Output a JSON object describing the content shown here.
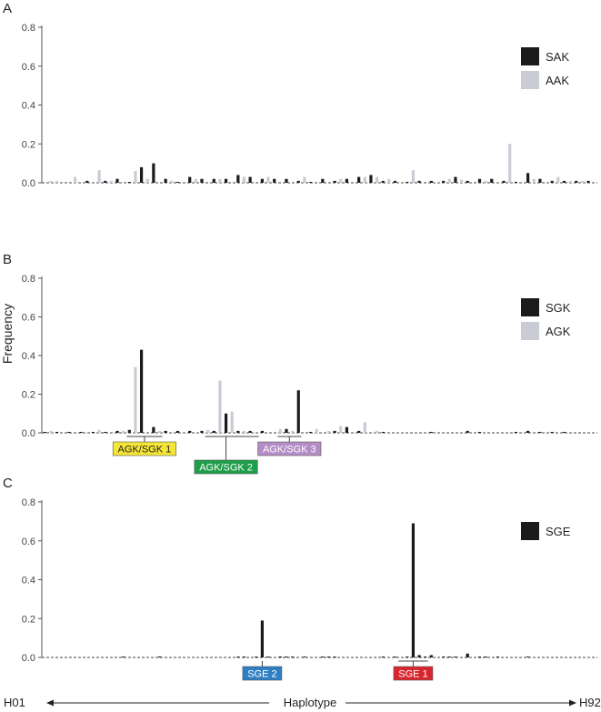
{
  "figure": {
    "ylabel": "Frequency",
    "x_axis": {
      "left": "H01",
      "center": "Haplotype",
      "right": "H92"
    }
  },
  "colors": {
    "dark": "#1b1b1b",
    "light": "#c9ccd4"
  },
  "chart_data": [
    {
      "type": "bar",
      "panel": "A",
      "ylim": [
        0,
        0.8
      ],
      "yticks": [
        0.0,
        0.2,
        0.4,
        0.6,
        0.8
      ],
      "legend_position": "top-right",
      "series": [
        {
          "name": "SAK",
          "color": "#1b1b1b",
          "x": [
            8,
            11,
            13,
            15,
            17,
            19,
            21,
            23,
            25,
            27,
            29,
            31,
            33,
            35,
            37,
            39,
            41,
            43,
            45,
            47,
            49,
            51,
            53,
            55,
            57,
            59,
            61,
            63,
            65,
            67,
            69,
            71,
            73,
            75,
            77,
            79,
            81,
            83,
            85,
            87,
            89,
            91
          ],
          "values": [
            0.01,
            0.01,
            0.02,
            0.0,
            0.08,
            0.1,
            0.02,
            0.0,
            0.03,
            0.02,
            0.02,
            0.02,
            0.04,
            0.03,
            0.02,
            0.02,
            0.02,
            0.01,
            0.0,
            0.02,
            0.01,
            0.02,
            0.03,
            0.04,
            0.01,
            0.01,
            0.0,
            0.01,
            0.01,
            0.01,
            0.03,
            0.01,
            0.02,
            0.02,
            0.01,
            0.0,
            0.05,
            0.02,
            0.01,
            0.01,
            0.01,
            0.01
          ]
        },
        {
          "name": "AAK",
          "color": "#c9ccd4",
          "x": [
            2,
            3,
            6,
            10,
            12,
            16,
            18,
            22,
            26,
            30,
            34,
            38,
            44,
            50,
            54,
            56,
            58,
            62,
            68,
            70,
            74,
            78,
            82,
            86,
            88,
            90
          ],
          "values": [
            0.01,
            0.01,
            0.03,
            0.065,
            0.01,
            0.06,
            0.02,
            0.01,
            0.02,
            0.02,
            0.03,
            0.03,
            0.03,
            0.02,
            0.03,
            0.03,
            0.02,
            0.065,
            0.02,
            0.015,
            0.01,
            0.2,
            0.02,
            0.03,
            0.01,
            0.01
          ]
        }
      ]
    },
    {
      "type": "bar",
      "panel": "B",
      "ylim": [
        0,
        0.8
      ],
      "yticks": [
        0.0,
        0.2,
        0.4,
        0.6,
        0.8
      ],
      "legend_position": "top-right",
      "series": [
        {
          "name": "SGK",
          "color": "#1b1b1b",
          "x": [
            1,
            3,
            5,
            7,
            9,
            11,
            13,
            15,
            17,
            19,
            21,
            23,
            25,
            27,
            29,
            31,
            33,
            35,
            37,
            41,
            43,
            45,
            49,
            51,
            53,
            57,
            65,
            71,
            73,
            79,
            81,
            83,
            85,
            87
          ],
          "values": [
            0.005,
            0.005,
            0.005,
            0.005,
            0.005,
            0.005,
            0.01,
            0.015,
            0.43,
            0.03,
            0.01,
            0.01,
            0.01,
            0.01,
            0.01,
            0.1,
            0.01,
            0.01,
            0.01,
            0.02,
            0.22,
            0.005,
            0.01,
            0.03,
            0.01,
            0.005,
            0.005,
            0.01,
            0.005,
            0.005,
            0.01,
            0.005,
            0.005,
            0.005
          ]
        },
        {
          "name": "AGK",
          "color": "#c9ccd4",
          "x": [
            2,
            10,
            14,
            16,
            20,
            28,
            30,
            32,
            34,
            40,
            42,
            46,
            48,
            50,
            54,
            56
          ],
          "values": [
            0.01,
            0.015,
            0.01,
            0.34,
            0.01,
            0.015,
            0.27,
            0.11,
            0.01,
            0.02,
            0.01,
            0.02,
            0.01,
            0.035,
            0.055,
            0.01
          ]
        }
      ],
      "callouts": [
        {
          "label": "AGK/SGK 1",
          "bg": "#f5e536",
          "fg": "#222222",
          "x_start": 15,
          "x_end": 20,
          "x_center": 17.5
        },
        {
          "label": "AGK/SGK 2",
          "bg": "#1f9e4a",
          "fg": "#ffffff",
          "x_start": 28,
          "x_end": 36,
          "x_center": 31
        },
        {
          "label": "AGK/SGK 3",
          "bg": "#b48cc6",
          "fg": "#ffffff",
          "x_start": 40,
          "x_end": 43,
          "x_center": 41.5
        }
      ]
    },
    {
      "type": "bar",
      "panel": "C",
      "ylim": [
        0,
        0.8
      ],
      "yticks": [
        0.0,
        0.2,
        0.4,
        0.6,
        0.8
      ],
      "legend_position": "top-right",
      "series": [
        {
          "name": "SGE",
          "color": "#1b1b1b",
          "x": [
            14,
            20,
            33,
            34,
            36,
            37,
            38,
            40,
            41,
            42,
            44,
            47,
            48,
            49,
            57,
            59,
            61,
            62,
            63,
            64,
            65,
            67,
            68,
            69,
            71,
            73,
            74,
            76,
            81
          ],
          "values": [
            0.003,
            0.005,
            0.003,
            0.003,
            0.003,
            0.19,
            0.003,
            0.005,
            0.003,
            0.004,
            0.003,
            0.002,
            0.002,
            0.002,
            0.002,
            0.003,
            0.004,
            0.69,
            0.012,
            0.004,
            0.012,
            0.004,
            0.003,
            0.003,
            0.02,
            0.003,
            0.003,
            0.004,
            0.002
          ]
        }
      ],
      "callouts": [
        {
          "label": "SGE 2",
          "bg": "#2f7fc4",
          "fg": "#ffffff",
          "x_start": 37,
          "x_end": 37,
          "x_center": 37
        },
        {
          "label": "SGE 1",
          "bg": "#d9262e",
          "fg": "#ffffff",
          "x_start": 60,
          "x_end": 64,
          "x_center": 62
        }
      ]
    }
  ]
}
